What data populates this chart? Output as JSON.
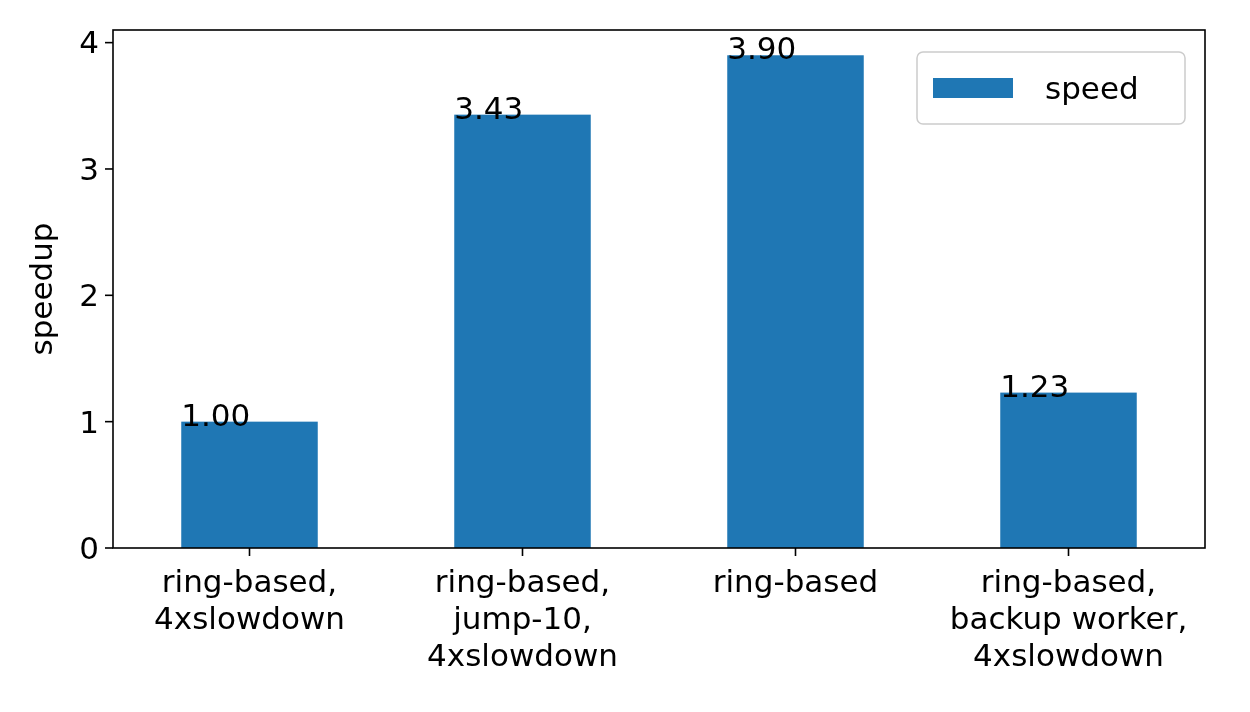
{
  "chart_data": {
    "type": "bar",
    "ylabel": "speedup",
    "categories": [
      "ring-based,\n4xslowdown",
      "ring-based,\njump-10,\n4xslowdown",
      "ring-based",
      "ring-based,\nbackup worker,\n4xslowdown"
    ],
    "series": [
      {
        "name": "speed",
        "color": "#1f77b4",
        "values": [
          1.0,
          3.43,
          3.9,
          1.23
        ],
        "value_labels": [
          "1.00",
          "3.43",
          "3.90",
          "1.23"
        ]
      }
    ],
    "ylim": [
      0,
      4.1
    ],
    "yticks": [
      0,
      1,
      2,
      3,
      4
    ],
    "legend": "top right",
    "grid": false
  }
}
